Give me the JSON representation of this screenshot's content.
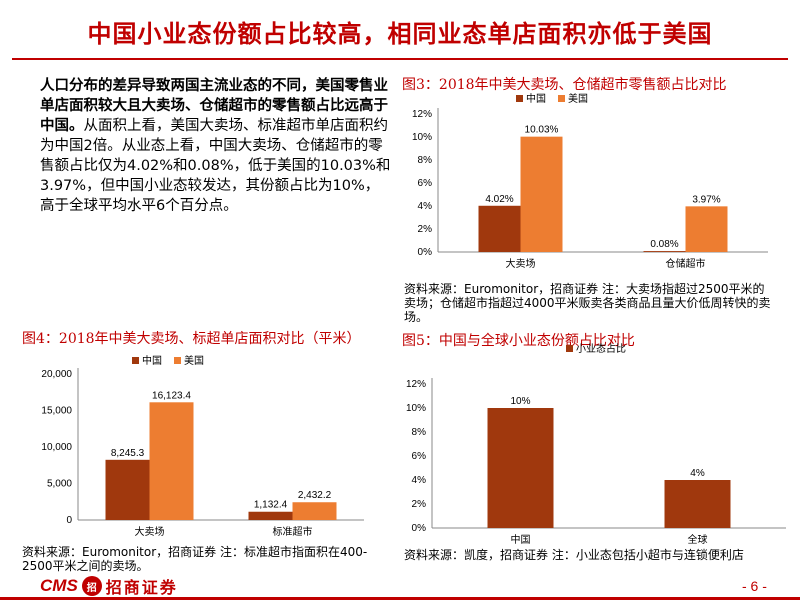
{
  "title": "中国小业态份额占比较高，相同业态单店面积亦低于美国",
  "paragraph": {
    "bold": "人口分布的差异导致两国主流业态的不同，美国零售业单店面积较大且大卖场、仓储超市的零售额占比远高于中国。",
    "normal": "从面积上看，美国大卖场、标准超市单店面积约为中国2倍。从业态上看，中国大卖场、仓储超市的零售额占比仅为4.02%和0.08%，低于美国的10.03%和3.97%，但中国小业态较发达，其份额占比为10%，高于全球平均水平6个百分点。"
  },
  "fig3": {
    "title": "图3：2018年中美大卖场、仓储超市零售额占比对比",
    "source": "资料来源：Euromonitor，招商证券 注：大卖场指超过2500平米的卖场；仓储超市指超过4000平米贩卖各类商品且量大价低周转快的卖场。"
  },
  "fig4": {
    "title": "图4：2018年中美大卖场、标超单店面积对比（平米）",
    "source": "资料来源：Euromonitor，招商证券 注：标准超市指面积在400-2500平米之间的卖场。"
  },
  "fig5": {
    "title": "图5：中国与全球小业态份额占比对比",
    "source": "资料来源：凯度，招商证券 注：小业态包括小超市与连锁便利店"
  },
  "colors": {
    "china": "#a0380d",
    "usa": "#ed7d31",
    "accent": "#c00000"
  },
  "chart_data": [
    {
      "type": "bar",
      "categories": [
        "大卖场",
        "仓储超市"
      ],
      "series": [
        {
          "name": "中国",
          "values": [
            4.02,
            0.08
          ],
          "labels": [
            "4.02%",
            "0.08%"
          ]
        },
        {
          "name": "美国",
          "values": [
            10.03,
            3.97
          ],
          "labels": [
            "10.03%",
            "3.97%"
          ]
        }
      ],
      "yticks": [
        "0%",
        "2%",
        "4%",
        "6%",
        "8%",
        "10%",
        "12%"
      ],
      "ylim": [
        0,
        12
      ],
      "legend": "top-center"
    },
    {
      "type": "bar",
      "categories": [
        "大卖场",
        "标准超市"
      ],
      "series": [
        {
          "name": "中国",
          "values": [
            8245.3,
            1132.4
          ],
          "labels": [
            "8,245.3",
            "1,132.4"
          ]
        },
        {
          "name": "美国",
          "values": [
            16123.4,
            2432.2
          ],
          "labels": [
            "16,123.4",
            "2,432.2"
          ]
        }
      ],
      "yticks": [
        "0",
        "5,000",
        "10,000",
        "15,000",
        "20,000"
      ],
      "ylim": [
        0,
        20000
      ],
      "legend": "top-center"
    },
    {
      "type": "bar",
      "categories": [
        "中国",
        "全球"
      ],
      "series": [
        {
          "name": "小业态占比",
          "values": [
            10,
            4
          ],
          "labels": [
            "10%",
            "4%"
          ]
        }
      ],
      "yticks": [
        "0%",
        "2%",
        "4%",
        "6%",
        "8%",
        "10%",
        "12%"
      ],
      "ylim": [
        0,
        12
      ],
      "legend": "top-center"
    }
  ],
  "footer": {
    "logo_cms": "CMS",
    "logo_badge": "招",
    "logo_cn": "招商证券",
    "page": "- 6 -"
  }
}
